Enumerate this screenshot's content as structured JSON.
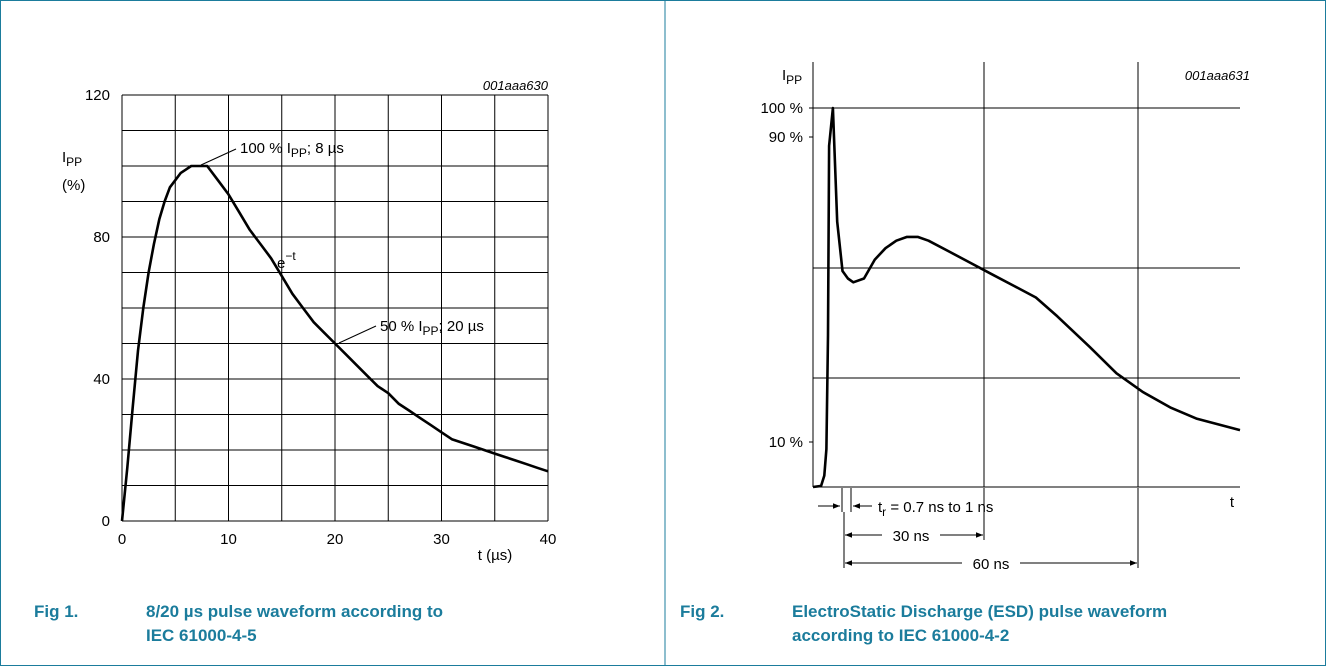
{
  "colors": {
    "border": "#1b7c9c",
    "caption": "#1b7c9c",
    "line": "#000000"
  },
  "fig1": {
    "ref": "001aaa630",
    "y_title": "I",
    "y_title_sub": "PP",
    "y_unit": "(%)",
    "x_title": "t (µs)",
    "x_ticks": [
      "0",
      "10",
      "20",
      "30",
      "40"
    ],
    "y_ticks": [
      "0",
      "40",
      "80",
      "120"
    ],
    "ann_peak_a": "100 % I",
    "ann_peak_sub": "PP",
    "ann_peak_b": "; 8 µs",
    "ann_exp": "e",
    "ann_exp_sup": "−t",
    "ann_half_a": "50 % I",
    "ann_half_sub": "PP",
    "ann_half_b": "; 20 µs",
    "caption_num": "Fig 1.",
    "caption_line1": "8/20 µs pulse waveform according to",
    "caption_line2": "IEC 61000-4-5"
  },
  "fig2": {
    "ref": "001aaa631",
    "y_title": "I",
    "y_title_sub": "PP",
    "y_ticks": [
      "100 %",
      "90 %",
      "10 %"
    ],
    "x_title": "t",
    "tr_a": "t",
    "tr_sub": "r",
    "tr_b": " = 0.7 ns to 1 ns",
    "dim_30": "30 ns",
    "dim_60": "60 ns",
    "caption_num": "Fig 2.",
    "caption_line1": "ElectroStatic Discharge (ESD) pulse waveform",
    "caption_line2": "according to IEC 61000-4-2"
  },
  "chart_data": [
    {
      "type": "line",
      "title": "8/20 µs pulse waveform according to IEC 61000-4-5",
      "xlabel": "t (µs)",
      "ylabel": "IPP (%)",
      "xlim": [
        0,
        40
      ],
      "ylim": [
        0,
        120
      ],
      "grid": true,
      "series": [
        {
          "x": [
            0,
            0.5,
            1,
            1.5,
            2,
            2.5,
            3,
            3.5,
            4,
            4.5,
            5,
            5.5,
            6,
            6.5,
            7,
            7.5,
            8,
            9,
            10,
            11,
            12,
            13,
            14,
            15,
            16,
            17,
            18,
            19,
            20,
            21,
            22,
            23,
            24,
            25,
            26,
            27,
            28,
            29,
            30,
            31,
            32,
            33,
            34,
            35,
            36,
            37,
            38,
            39,
            40
          ],
          "values": [
            0,
            15,
            32,
            48,
            60,
            70,
            78,
            85,
            90,
            94,
            96,
            98,
            99,
            100,
            100,
            100,
            100,
            96,
            92,
            87,
            82,
            78,
            74,
            69,
            64,
            60,
            56,
            53,
            50,
            47,
            44,
            41,
            38,
            36,
            33,
            31,
            29,
            27,
            25,
            23,
            22,
            21,
            20,
            19,
            18,
            17,
            16,
            15,
            14
          ]
        }
      ],
      "annotations": [
        "100 % IPP; 8 µs",
        "e−t",
        "50 % IPP; 20 µs"
      ]
    },
    {
      "type": "line",
      "title": "ElectroStatic Discharge (ESD) pulse waveform according to IEC 61000-4-2",
      "xlabel": "t",
      "ylabel": "IPP",
      "x_units": "ns",
      "xlim": [
        -1.5,
        78
      ],
      "ylim": [
        0,
        107
      ],
      "grid": true,
      "y_tick_values": [
        100,
        90,
        10
      ],
      "series": [
        {
          "x": [
            -1.5,
            0,
            0.6,
            1.0,
            1.3,
            1.5,
            2.2,
            3,
            4,
            5,
            6,
            8,
            10,
            12,
            14,
            16,
            18,
            20,
            24,
            28,
            32,
            36,
            40,
            44,
            50,
            55,
            60,
            65,
            70,
            78
          ],
          "values": [
            0,
            0.3,
            3,
            10,
            40,
            90,
            100,
            70,
            57,
            55,
            54,
            55,
            60,
            63,
            65,
            66,
            66,
            65,
            62,
            59,
            56,
            53,
            50,
            45,
            37,
            30,
            25,
            21,
            18,
            15
          ]
        }
      ],
      "annotations": [
        "tr = 0.7 ns to 1 ns",
        "30 ns",
        "60 ns"
      ]
    }
  ]
}
